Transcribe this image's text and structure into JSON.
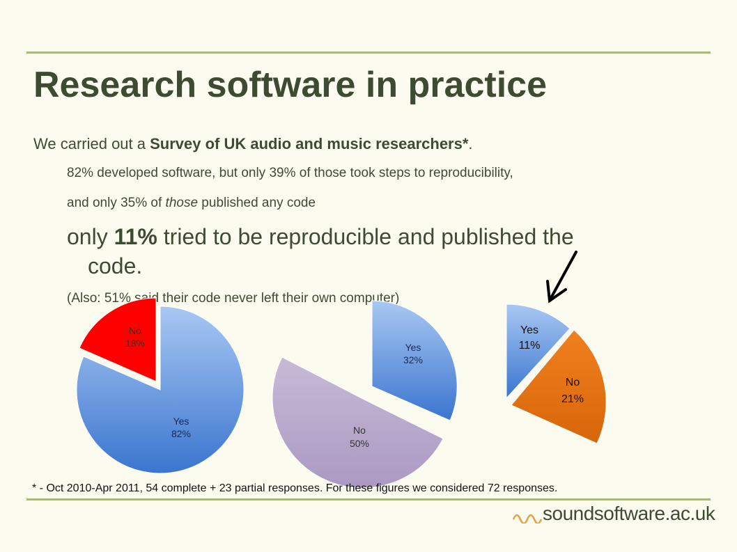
{
  "slide": {
    "title": "Research software in practice",
    "line1": {
      "pre": "We carried out a ",
      "bold": "Survey of UK audio and music researchers*",
      "post": "."
    },
    "line2": "82% developed software, but only 39% of those took steps to reproducibility,",
    "line3": {
      "pre": "and only 35% of ",
      "italic": "those",
      "post": " published any code"
    },
    "line4": {
      "pre": "only ",
      "bold": "11%",
      "post": " tried to be reproducible and published the",
      "wrap": "code."
    },
    "line5": "(Also: 51% said their code never left their own computer)",
    "footnote": "* - Oct 2010-Apr 2011, 54 complete + 23 partial responses. For these figures we considered 72 responses.",
    "logo": "soundsoftware.ac.uk"
  },
  "colors": {
    "yes_blue": "#4f86d8",
    "no_red": "#ff0000",
    "no_purple": "#b4a3c8",
    "no_orange": "#e46c0a",
    "text": "#3f4a33",
    "rule": "#a9b77c"
  },
  "chart_data": [
    {
      "type": "pie",
      "slices": [
        {
          "label": "No",
          "pct_text": "18%",
          "value": 18,
          "color": "#ff0000",
          "exploded": true
        },
        {
          "label": "Yes",
          "pct_text": "82%",
          "value": 82,
          "color": "#4f86d8",
          "exploded": false
        }
      ]
    },
    {
      "type": "pie",
      "slices": [
        {
          "label": "Yes",
          "pct_text": "32%",
          "value": 32,
          "color": "#4f86d8",
          "exploded": true
        },
        {
          "label": "No",
          "pct_text": "50%",
          "value": 50,
          "color": "#b4a3c8",
          "exploded": false
        }
      ]
    },
    {
      "type": "pie",
      "slices": [
        {
          "label": "Yes",
          "pct_text": "11%",
          "value": 11,
          "color": "#4f86d8",
          "exploded": false
        },
        {
          "label": "No",
          "pct_text": "21%",
          "value": 21,
          "color": "#e46c0a",
          "exploded": true
        }
      ]
    }
  ]
}
